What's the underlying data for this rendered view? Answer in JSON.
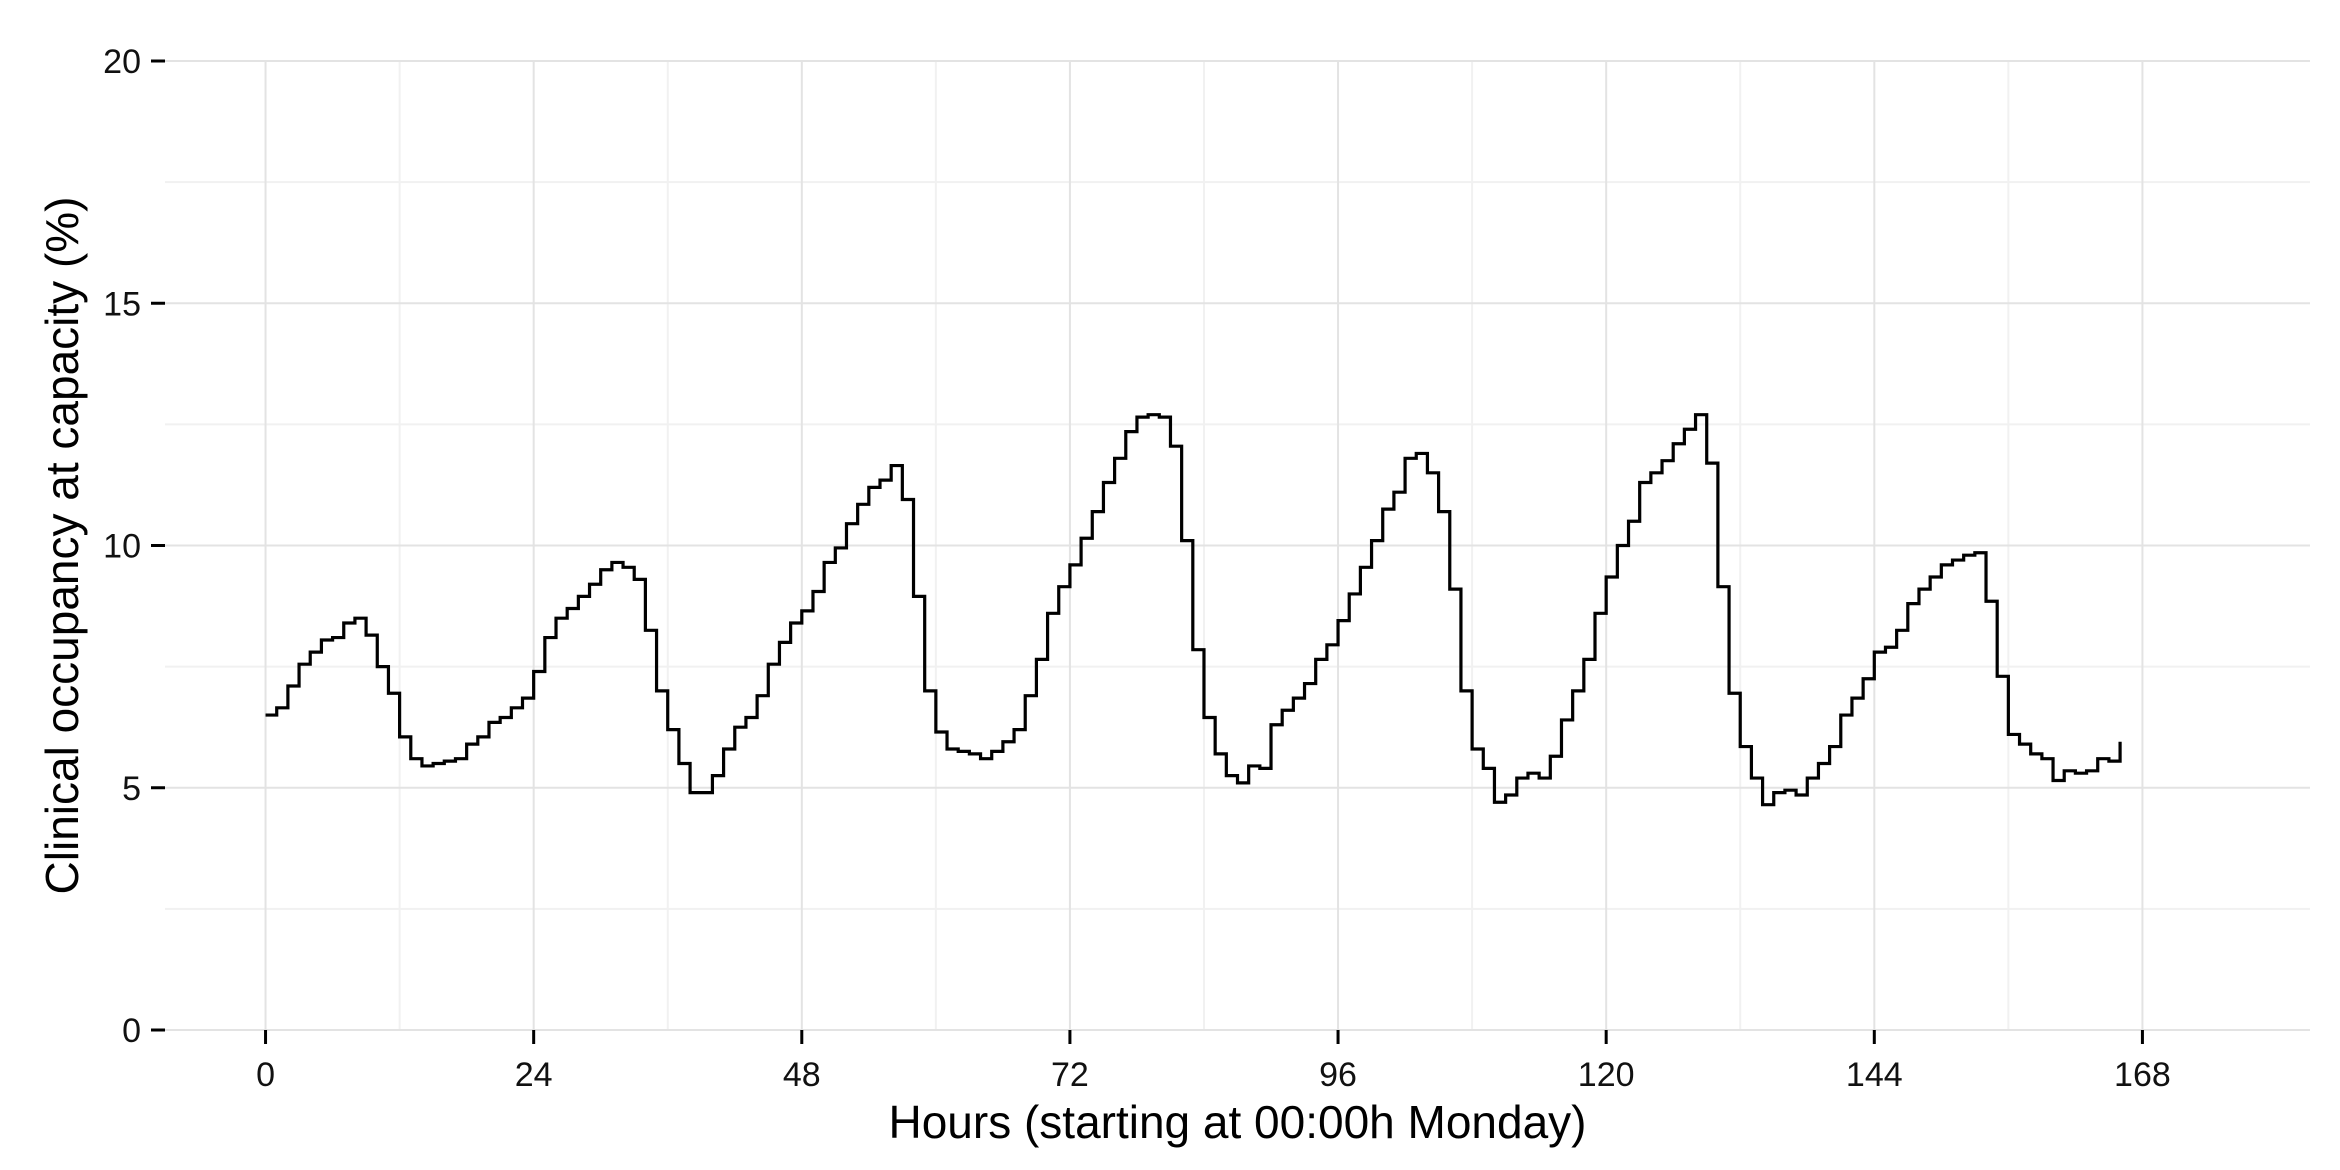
{
  "chart_data": {
    "type": "line",
    "title": "",
    "xlabel": "Hours (starting at 00:00h Monday)",
    "ylabel": "Clinical occupancy at capacity (%)",
    "xlim": [
      -9,
      183
    ],
    "ylim": [
      0,
      20
    ],
    "x_ticks": [
      0,
      24,
      48,
      72,
      96,
      120,
      144,
      168
    ],
    "y_ticks": [
      0,
      5,
      10,
      15,
      20
    ],
    "grid": true,
    "legend": "none",
    "line_style": "step",
    "colors": {
      "line": "#000000",
      "grid_major": "#e3e3e3",
      "grid_minor": "#f1f1f1"
    },
    "series": [
      {
        "x": [
          0,
          1,
          2,
          3,
          4,
          5,
          6,
          7,
          8,
          9,
          10,
          11,
          12,
          13,
          14,
          15,
          16,
          17,
          18,
          19,
          20,
          21,
          22,
          23,
          24,
          25,
          26,
          27,
          28,
          29,
          30,
          31,
          32,
          33,
          34,
          35,
          36,
          37,
          38,
          39,
          40,
          41,
          42,
          43,
          44,
          45,
          46,
          47,
          48,
          49,
          50,
          51,
          52,
          53,
          54,
          55,
          56,
          57,
          58,
          59,
          60,
          61,
          62,
          63,
          64,
          65,
          66,
          67,
          68,
          69,
          70,
          71,
          72,
          73,
          74,
          75,
          76,
          77,
          78,
          79,
          80,
          81,
          82,
          83,
          84,
          85,
          86,
          87,
          88,
          89,
          90,
          91,
          92,
          93,
          94,
          95,
          96,
          97,
          98,
          99,
          100,
          101,
          102,
          103,
          104,
          105,
          106,
          107,
          108,
          109,
          110,
          111,
          112,
          113,
          114,
          115,
          116,
          117,
          118,
          119,
          120,
          121,
          122,
          123,
          124,
          125,
          126,
          127,
          128,
          129,
          130,
          131,
          132,
          133,
          134,
          135,
          136,
          137,
          138,
          139,
          140,
          141,
          142,
          143,
          144,
          145,
          146,
          147,
          148,
          149,
          150,
          151,
          152,
          153,
          154,
          155,
          156,
          157,
          158,
          159,
          160,
          161,
          162,
          163,
          164,
          165,
          166
        ],
        "values": [
          6.5,
          6.65,
          7.1,
          7.55,
          7.8,
          8.05,
          8.1,
          8.4,
          8.5,
          8.15,
          7.5,
          6.95,
          6.05,
          5.6,
          5.45,
          5.5,
          5.55,
          5.6,
          5.9,
          6.05,
          6.35,
          6.45,
          6.65,
          6.85,
          7.4,
          8.1,
          8.5,
          8.7,
          8.95,
          9.2,
          9.5,
          9.65,
          9.55,
          9.3,
          8.25,
          7.0,
          6.2,
          5.5,
          4.9,
          4.9,
          5.25,
          5.8,
          6.25,
          6.45,
          6.9,
          7.55,
          8.0,
          8.4,
          8.65,
          9.05,
          9.65,
          9.95,
          10.45,
          10.85,
          11.2,
          11.35,
          11.65,
          10.95,
          8.95,
          7.0,
          6.15,
          5.8,
          5.75,
          5.7,
          5.6,
          5.75,
          5.95,
          6.2,
          6.9,
          7.65,
          8.6,
          9.15,
          9.6,
          10.15,
          10.7,
          11.3,
          11.8,
          12.35,
          12.65,
          12.7,
          12.65,
          12.05,
          10.1,
          7.85,
          6.45,
          5.7,
          5.25,
          5.1,
          5.45,
          5.4,
          6.3,
          6.6,
          6.85,
          7.15,
          7.65,
          7.95,
          8.45,
          9.0,
          9.55,
          10.1,
          10.75,
          11.1,
          11.8,
          11.9,
          11.5,
          10.7,
          9.1,
          7.0,
          5.8,
          5.4,
          4.7,
          4.85,
          5.2,
          5.3,
          5.2,
          5.65,
          6.4,
          7.0,
          7.65,
          8.6,
          9.35,
          10.0,
          10.5,
          11.3,
          11.5,
          11.75,
          12.1,
          12.4,
          12.7,
          11.7,
          9.15,
          6.95,
          5.85,
          5.2,
          4.65,
          4.9,
          4.95,
          4.85,
          5.2,
          5.5,
          5.85,
          6.5,
          6.85,
          7.25,
          7.8,
          7.9,
          8.25,
          8.8,
          9.1,
          9.35,
          9.6,
          9.7,
          9.8,
          9.85,
          8.85,
          7.3,
          6.1,
          5.9,
          5.7,
          5.6,
          5.15,
          5.35,
          5.3,
          5.35,
          5.6,
          5.55,
          5.95
        ]
      }
    ]
  }
}
